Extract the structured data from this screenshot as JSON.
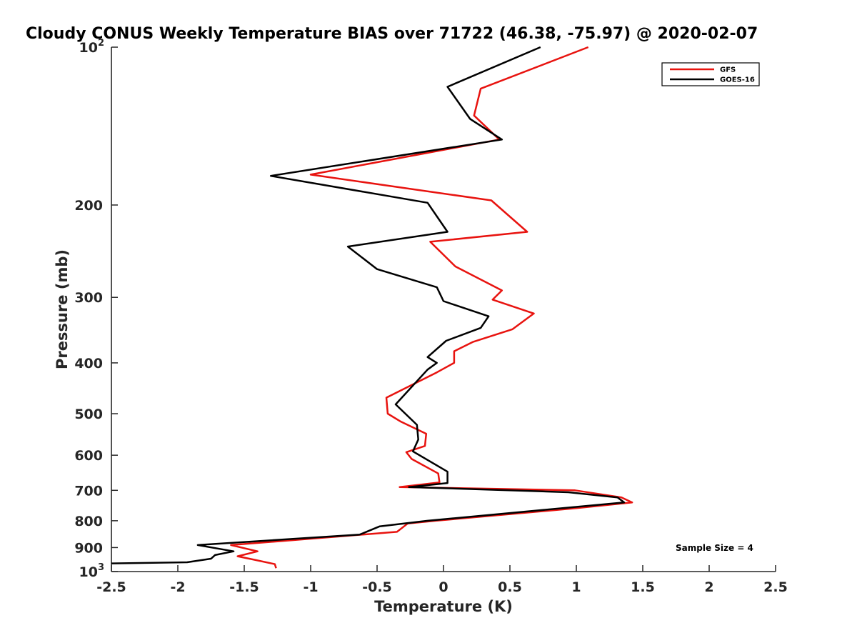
{
  "chart_data": {
    "type": "line",
    "title": "Cloudy CONUS Weekly Temperature BIAS over 71722 (46.38, -75.97) @ 2020-02-07",
    "xlabel": "Temperature (K)",
    "ylabel": "Pressure (mb)",
    "xlim": [
      -2.5,
      2.5
    ],
    "ylim": [
      100,
      1000
    ],
    "y_scale": "log",
    "y_reversed": true,
    "x_ticks": [
      -2.5,
      -2,
      -1.5,
      -1,
      -0.5,
      0,
      0.5,
      1,
      1.5,
      2,
      2.5
    ],
    "x_tick_labels": [
      "-2.5",
      "-2",
      "-1.5",
      "-1",
      "-0.5",
      "0",
      "0.5",
      "1",
      "1.5",
      "2",
      "2.5"
    ],
    "y_ticks": [
      {
        "value": 100,
        "base": "10",
        "exp": "2"
      },
      {
        "value": 200,
        "label": "200"
      },
      {
        "value": 300,
        "label": "300"
      },
      {
        "value": 400,
        "label": "400"
      },
      {
        "value": 500,
        "label": "500"
      },
      {
        "value": 600,
        "label": "600"
      },
      {
        "value": 700,
        "label": "700"
      },
      {
        "value": 800,
        "label": "800"
      },
      {
        "value": 900,
        "label": "900"
      },
      {
        "value": 1000,
        "base": "10",
        "exp": "3"
      }
    ],
    "grid": false,
    "legend_position": "top-right",
    "annotation": "Sample Size = 4",
    "series": [
      {
        "name": "GFS",
        "color": "#e8130f",
        "points": [
          {
            "x": 1.09,
            "p": 100
          },
          {
            "x": 0.28,
            "p": 120
          },
          {
            "x": 0.23,
            "p": 135
          },
          {
            "x": 0.42,
            "p": 150
          },
          {
            "x": -1.0,
            "p": 175
          },
          {
            "x": 0.36,
            "p": 196
          },
          {
            "x": 0.63,
            "p": 225
          },
          {
            "x": -0.1,
            "p": 235
          },
          {
            "x": 0.09,
            "p": 262
          },
          {
            "x": 0.44,
            "p": 291
          },
          {
            "x": 0.37,
            "p": 303
          },
          {
            "x": 0.68,
            "p": 322
          },
          {
            "x": 0.52,
            "p": 345
          },
          {
            "x": 0.22,
            "p": 365
          },
          {
            "x": 0.08,
            "p": 380
          },
          {
            "x": 0.08,
            "p": 400
          },
          {
            "x": -0.05,
            "p": 417
          },
          {
            "x": -0.43,
            "p": 466
          },
          {
            "x": -0.42,
            "p": 500
          },
          {
            "x": -0.32,
            "p": 518
          },
          {
            "x": -0.13,
            "p": 546
          },
          {
            "x": -0.14,
            "p": 576
          },
          {
            "x": -0.28,
            "p": 592
          },
          {
            "x": -0.24,
            "p": 610
          },
          {
            "x": -0.04,
            "p": 650
          },
          {
            "x": -0.03,
            "p": 676
          },
          {
            "x": -0.33,
            "p": 690
          },
          {
            "x": 0.99,
            "p": 700
          },
          {
            "x": 1.34,
            "p": 722
          },
          {
            "x": 1.42,
            "p": 738
          },
          {
            "x": 1.0,
            "p": 757
          },
          {
            "x": -0.06,
            "p": 800
          },
          {
            "x": -0.27,
            "p": 810
          },
          {
            "x": -0.35,
            "p": 840
          },
          {
            "x": -1.6,
            "p": 890
          },
          {
            "x": -1.4,
            "p": 915
          },
          {
            "x": -1.55,
            "p": 935
          },
          {
            "x": -1.42,
            "p": 950
          },
          {
            "x": -1.27,
            "p": 968
          },
          {
            "x": -1.26,
            "p": 985
          }
        ]
      },
      {
        "name": "GOES-16",
        "color": "#000000",
        "points": [
          {
            "x": 0.73,
            "p": 100
          },
          {
            "x": 0.03,
            "p": 119
          },
          {
            "x": 0.2,
            "p": 137
          },
          {
            "x": 0.44,
            "p": 150
          },
          {
            "x": -1.3,
            "p": 176
          },
          {
            "x": -0.12,
            "p": 198
          },
          {
            "x": 0.03,
            "p": 225
          },
          {
            "x": -0.72,
            "p": 240
          },
          {
            "x": -0.5,
            "p": 265
          },
          {
            "x": -0.05,
            "p": 287
          },
          {
            "x": 0.0,
            "p": 305
          },
          {
            "x": 0.34,
            "p": 326
          },
          {
            "x": 0.28,
            "p": 343
          },
          {
            "x": 0.02,
            "p": 363
          },
          {
            "x": -0.12,
            "p": 390
          },
          {
            "x": -0.05,
            "p": 400
          },
          {
            "x": -0.12,
            "p": 412
          },
          {
            "x": -0.36,
            "p": 480
          },
          {
            "x": -0.2,
            "p": 525
          },
          {
            "x": -0.19,
            "p": 560
          },
          {
            "x": -0.23,
            "p": 590
          },
          {
            "x": 0.03,
            "p": 645
          },
          {
            "x": 0.03,
            "p": 678
          },
          {
            "x": -0.26,
            "p": 690
          },
          {
            "x": 0.94,
            "p": 706
          },
          {
            "x": 1.31,
            "p": 722
          },
          {
            "x": 1.36,
            "p": 738
          },
          {
            "x": -0.12,
            "p": 800
          },
          {
            "x": -0.48,
            "p": 820
          },
          {
            "x": -0.63,
            "p": 850
          },
          {
            "x": -1.85,
            "p": 890
          },
          {
            "x": -1.58,
            "p": 915
          },
          {
            "x": -1.72,
            "p": 930
          },
          {
            "x": -1.75,
            "p": 945
          },
          {
            "x": -1.93,
            "p": 960
          },
          {
            "x": -2.5,
            "p": 965
          }
        ]
      }
    ]
  }
}
